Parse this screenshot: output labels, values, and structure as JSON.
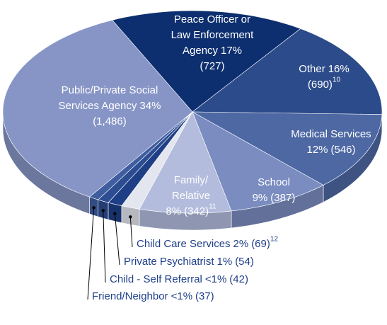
{
  "chart_data": {
    "type": "pie",
    "categories": [
      "Peace Officer or Law Enforcement Agency",
      "Other",
      "Medical Services",
      "School",
      "Family/ Relative",
      "Child Care Services",
      "Private Psychiatrist",
      "Child - Self Referral",
      "Friend/Neighbor",
      "Public/Private Social Services Agency"
    ],
    "values": [
      727,
      690,
      546,
      387,
      342,
      69,
      54,
      42,
      37,
      1486
    ],
    "value_labels": [
      "(727)",
      "(690)",
      "(546)",
      "(387)",
      "(342)",
      "(69)",
      "(54)",
      "(42)",
      "(37)",
      "(1,486)"
    ],
    "percent_labels": [
      "17%",
      "16%",
      "12%",
      "9%",
      "8%",
      "2%",
      "1%",
      "<1%",
      "<1%",
      "34%"
    ],
    "footnotes": [
      null,
      "10",
      null,
      null,
      "11",
      "12",
      null,
      null,
      null,
      null
    ],
    "colors": [
      "#0d2f6f",
      "#2c4b8a",
      "#4d68a3",
      "#7a8cc0",
      "#b3bcdd",
      "#e4e6ef",
      "#1e3f86",
      "#2d4d92",
      "#3f5ea0",
      "#8795c6"
    ]
  }
}
